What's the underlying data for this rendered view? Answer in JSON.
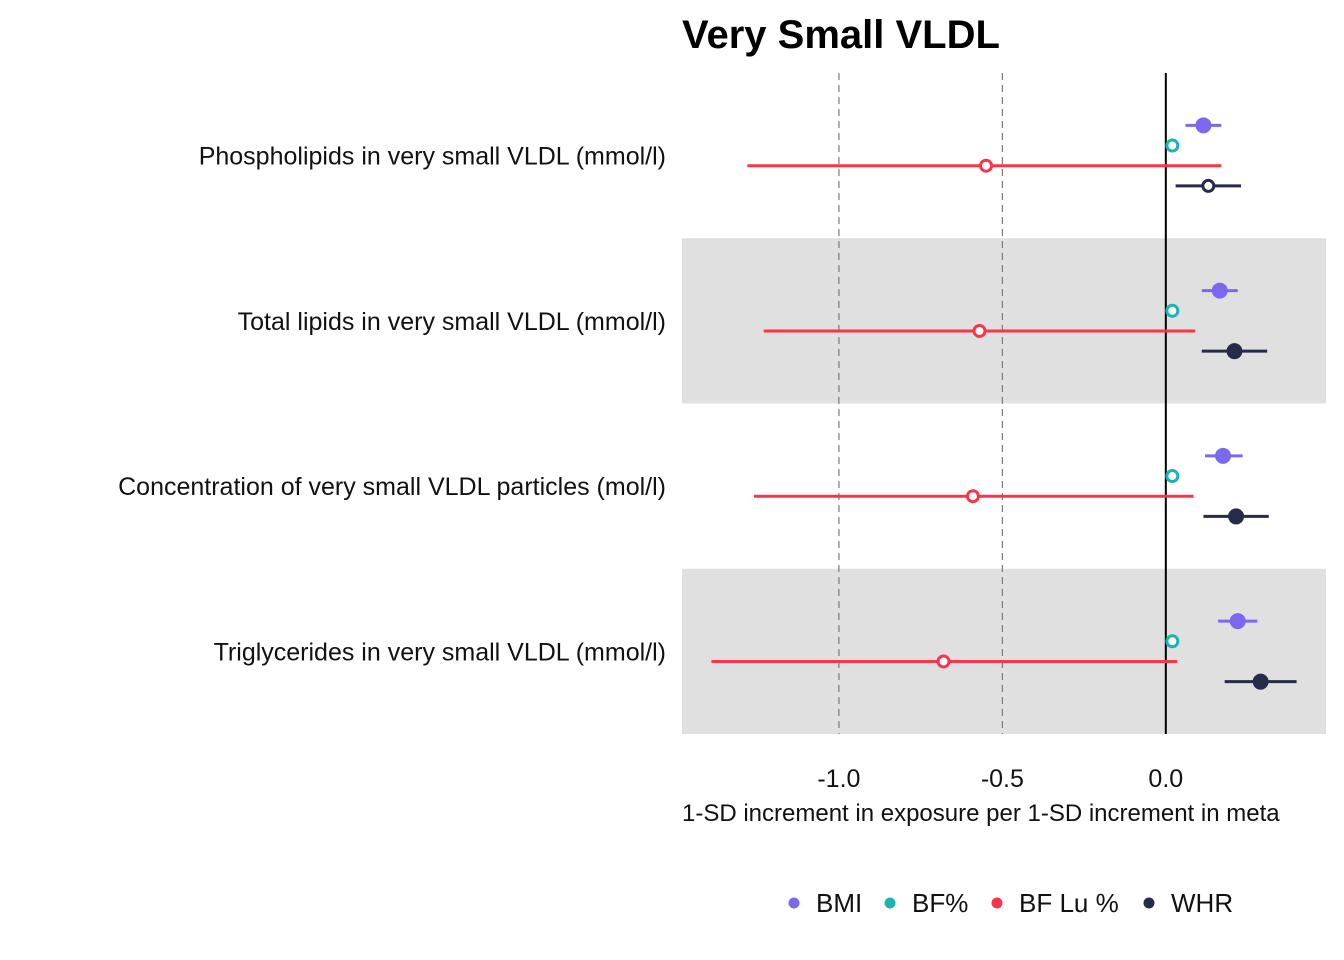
{
  "chart_data": {
    "type": "scatter",
    "subtype": "forest-plot",
    "title": "Very Small VLDL",
    "xlabel": "1-SD increment in exposure per 1-SD increment in meta",
    "ylabel": "",
    "xlim": [
      -1.48,
      0.49
    ],
    "xticks": [
      -1.0,
      -0.5,
      0.0
    ],
    "xtick_labels": [
      "-1.0",
      "-0.5",
      "0.0"
    ],
    "reference_lines": {
      "dashed": [
        -1.0,
        -0.5
      ],
      "solid": [
        0.0
      ]
    },
    "categories": [
      "Phospholipids in very small VLDL (mmol/l)",
      "Total lipids in very small VLDL (mmol/l)",
      "Concentration of very small VLDL particles (mol/l)",
      "Triglycerides in very small VLDL (mmol/l)"
    ],
    "shaded_rows": [
      false,
      true,
      false,
      true
    ],
    "series": [
      {
        "name": "BMI",
        "color": "#7B68EE",
        "estimates": [
          0.115,
          0.165,
          0.175,
          0.22
        ],
        "ci_low": [
          0.06,
          0.11,
          0.12,
          0.16
        ],
        "ci_high": [
          0.17,
          0.22,
          0.235,
          0.28
        ],
        "filled": [
          true,
          true,
          true,
          true
        ]
      },
      {
        "name": "BF%",
        "color": "#1DB3AE",
        "estimates": [
          0.02,
          0.02,
          0.02,
          0.02
        ],
        "ci_low": [
          0.02,
          0.02,
          0.02,
          0.02
        ],
        "ci_high": [
          0.02,
          0.02,
          0.02,
          0.02
        ],
        "filled": [
          false,
          false,
          false,
          false
        ]
      },
      {
        "name": "BF Lu %",
        "color": "#F8354B",
        "estimates": [
          -0.55,
          -0.57,
          -0.59,
          -0.68
        ],
        "ci_low": [
          -1.28,
          -1.23,
          -1.26,
          -1.39
        ],
        "ci_high": [
          0.17,
          0.09,
          0.085,
          0.035
        ],
        "filled": [
          false,
          false,
          false,
          false
        ]
      },
      {
        "name": "WHR",
        "color": "#252B48",
        "estimates": [
          0.13,
          0.21,
          0.215,
          0.29
        ],
        "ci_low": [
          0.03,
          0.11,
          0.115,
          0.18
        ],
        "ci_high": [
          0.23,
          0.31,
          0.315,
          0.4
        ],
        "filled": [
          false,
          true,
          true,
          true
        ]
      }
    ],
    "legend_position": "bottom",
    "grid": false
  }
}
